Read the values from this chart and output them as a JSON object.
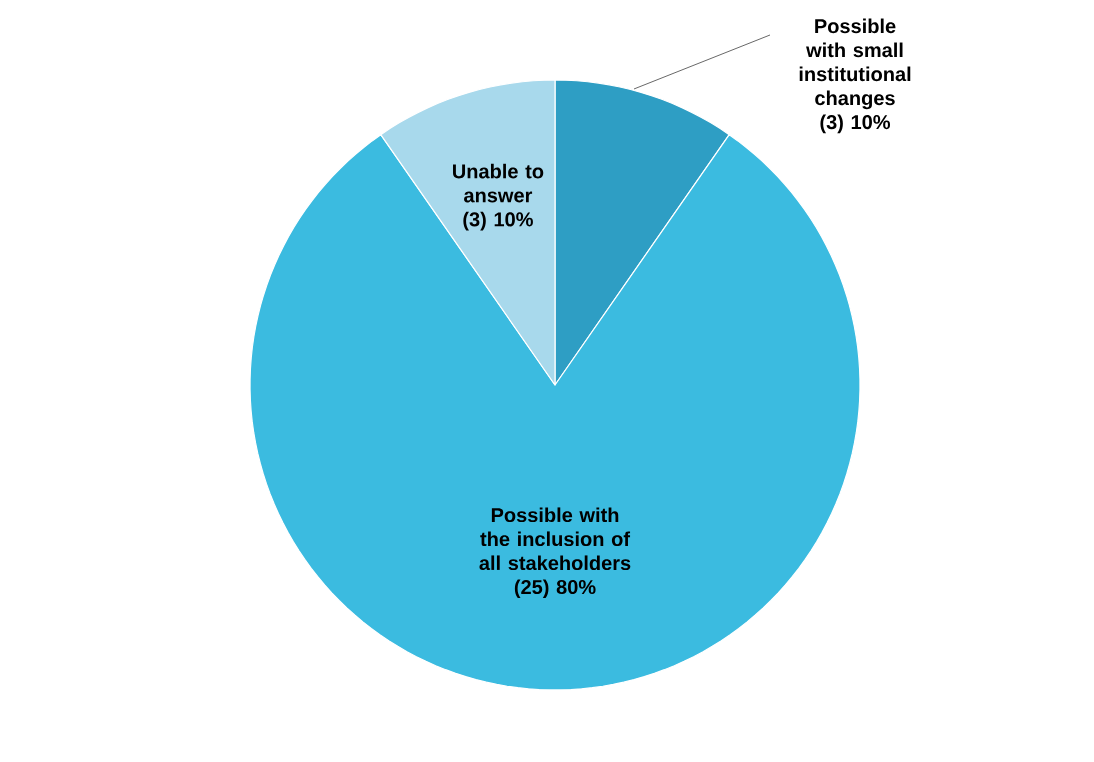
{
  "chart_data": {
    "type": "pie",
    "categories": [
      "Possible with small institutional changes",
      "Possible with the inclusion of all stakeholders",
      "Unable to answer"
    ],
    "values": [
      3,
      25,
      3
    ],
    "value_labels": [
      "(3) 10%",
      "(25) 80%",
      "(3) 10%"
    ],
    "colors": [
      "#2e9ec4",
      "#3bbbe0",
      "#a8d9ec"
    ]
  }
}
